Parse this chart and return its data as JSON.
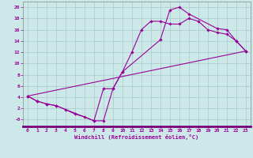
{
  "xlabel": "Windchill (Refroidissement éolien,°C)",
  "bg_color": "#cce8e8",
  "grid_color": "#aac8c8",
  "line_color": "#990099",
  "xlim": [
    -0.5,
    23.5
  ],
  "ylim": [
    -1.2,
    21
  ],
  "xticks": [
    0,
    1,
    2,
    3,
    4,
    5,
    6,
    7,
    8,
    9,
    10,
    11,
    12,
    13,
    14,
    15,
    16,
    17,
    18,
    19,
    20,
    21,
    22,
    23
  ],
  "yticks": [
    0,
    2,
    4,
    6,
    8,
    10,
    12,
    14,
    16,
    18,
    20
  ],
  "line1_x": [
    0,
    1,
    2,
    3,
    4,
    5,
    6,
    7,
    8,
    9,
    10,
    11,
    12,
    13,
    14,
    15,
    16,
    17,
    18,
    19,
    20,
    21,
    22,
    23
  ],
  "line1_y": [
    4.2,
    3.3,
    2.8,
    2.5,
    1.8,
    1.0,
    0.5,
    -0.2,
    -0.2,
    5.5,
    8.5,
    12.0,
    16.0,
    17.5,
    17.5,
    17.0,
    17.0,
    18.0,
    17.5,
    16.0,
    15.5,
    15.2,
    14.0,
    12.2
  ],
  "line2_x": [
    0,
    23
  ],
  "line2_y": [
    4.2,
    12.2
  ],
  "line3_x": [
    0,
    1,
    2,
    3,
    7,
    8,
    9,
    10,
    14,
    15,
    16,
    17,
    20,
    21,
    22,
    23
  ],
  "line3_y": [
    4.2,
    3.3,
    2.8,
    2.5,
    -0.2,
    5.5,
    5.5,
    8.5,
    14.2,
    19.5,
    20.0,
    18.8,
    16.2,
    16.0,
    14.0,
    12.2
  ]
}
